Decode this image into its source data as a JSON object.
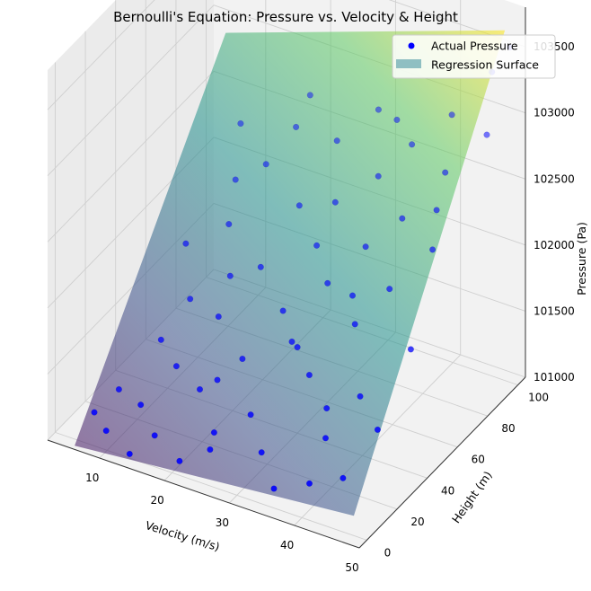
{
  "chart_data": {
    "type": "scatter3d",
    "title": "Bernoulli's Equation: Pressure vs. Velocity & Height",
    "xlabel": "Velocity (m/s)",
    "ylabel": "Height (m)",
    "zlabel": "Pressure (Pa)",
    "xlim": [
      2,
      50
    ],
    "ylim": [
      -5,
      105
    ],
    "zlim": [
      101000,
      103800
    ],
    "x_ticks": [
      "10",
      "20",
      "30",
      "40",
      "50"
    ],
    "y_ticks": [
      "0",
      "20",
      "40",
      "60",
      "80",
      "100"
    ],
    "z_ticks": [
      "101000",
      "101500",
      "102000",
      "102500",
      "103000",
      "103500"
    ],
    "legend": {
      "position": "top-right",
      "entries": [
        {
          "label": "Actual Pressure",
          "marker": "circle",
          "color": "#0000ff"
        },
        {
          "label": "Regression Surface",
          "marker": "patch",
          "color": "#8fbfc2"
        }
      ]
    },
    "surface": {
      "colormap": "viridis",
      "corners": [
        {
          "x": 5,
          "y": 0,
          "z": 100950
        },
        {
          "x": 48,
          "y": 0,
          "z": 101150
        },
        {
          "x": 5,
          "y": 100,
          "z": 102900
        },
        {
          "x": 48,
          "y": 100,
          "z": 103650
        }
      ]
    },
    "points": [
      {
        "x": 5,
        "y": 13,
        "z": 101050
      },
      {
        "x": 6,
        "y": 25,
        "z": 101100
      },
      {
        "x": 8,
        "y": 8,
        "z": 101020
      },
      {
        "x": 9,
        "y": 40,
        "z": 101350
      },
      {
        "x": 10,
        "y": 55,
        "z": 101500
      },
      {
        "x": 11,
        "y": 18,
        "z": 101150
      },
      {
        "x": 12,
        "y": 72,
        "z": 101900
      },
      {
        "x": 13,
        "y": 33,
        "z": 101300
      },
      {
        "x": 14,
        "y": 88,
        "z": 102200
      },
      {
        "x": 15,
        "y": 10,
        "z": 101080
      },
      {
        "x": 16,
        "y": 48,
        "z": 101550
      },
      {
        "x": 17,
        "y": 95,
        "z": 102450
      },
      {
        "x": 18,
        "y": 27,
        "z": 101280
      },
      {
        "x": 19,
        "y": 63,
        "z": 101800
      },
      {
        "x": 20,
        "y": 5,
        "z": 101030
      },
      {
        "x": 21,
        "y": 80,
        "z": 102100
      },
      {
        "x": 22,
        "y": 38,
        "z": 101450
      },
      {
        "x": 23,
        "y": 15,
        "z": 101180
      },
      {
        "x": 24,
        "y": 92,
        "z": 102500
      },
      {
        "x": 25,
        "y": 52,
        "z": 101700
      },
      {
        "x": 26,
        "y": 70,
        "z": 102000
      },
      {
        "x": 27,
        "y": 22,
        "z": 101300
      },
      {
        "x": 28,
        "y": 45,
        "z": 101600
      },
      {
        "x": 29,
        "y": 98,
        "z": 102750
      },
      {
        "x": 30,
        "y": 60,
        "z": 101900
      },
      {
        "x": 31,
        "y": 12,
        "z": 101200
      },
      {
        "x": 32,
        "y": 85,
        "z": 102450
      },
      {
        "x": 33,
        "y": 35,
        "z": 101550
      },
      {
        "x": 34,
        "y": 68,
        "z": 102150
      },
      {
        "x": 35,
        "y": 3,
        "z": 101100
      },
      {
        "x": 36,
        "y": 90,
        "z": 102700
      },
      {
        "x": 37,
        "y": 48,
        "z": 101850
      },
      {
        "x": 38,
        "y": 75,
        "z": 102350
      },
      {
        "x": 39,
        "y": 20,
        "z": 101350
      },
      {
        "x": 40,
        "y": 58,
        "z": 102050
      },
      {
        "x": 41,
        "y": 95,
        "z": 102950
      },
      {
        "x": 42,
        "y": 30,
        "z": 101600
      },
      {
        "x": 43,
        "y": 82,
        "z": 102700
      },
      {
        "x": 44,
        "y": 10,
        "z": 101250
      },
      {
        "x": 45,
        "y": 65,
        "z": 102350
      },
      {
        "x": 46,
        "y": 100,
        "z": 103300
      },
      {
        "x": 47,
        "y": 42,
        "z": 101900
      },
      {
        "x": 48,
        "y": 88,
        "z": 103000
      },
      {
        "x": 49,
        "y": 99,
        "z": 103550
      },
      {
        "x": 7,
        "y": 65,
        "z": 101750
      },
      {
        "x": 10,
        "y": 85,
        "z": 102050
      },
      {
        "x": 13,
        "y": 2,
        "z": 101000
      },
      {
        "x": 18,
        "y": 100,
        "z": 102650
      },
      {
        "x": 24,
        "y": 8,
        "z": 101150
      },
      {
        "x": 30,
        "y": 40,
        "z": 101650
      },
      {
        "x": 35,
        "y": 55,
        "z": 101950
      },
      {
        "x": 40,
        "y": 5,
        "z": 101200
      },
      {
        "x": 44,
        "y": 72,
        "z": 102550
      },
      {
        "x": 20,
        "y": 30,
        "z": 101350
      },
      {
        "x": 27,
        "y": 78,
        "z": 102250
      },
      {
        "x": 33,
        "y": 93,
        "z": 102800
      },
      {
        "x": 38,
        "y": 25,
        "z": 101500
      },
      {
        "x": 15,
        "y": 60,
        "z": 101700
      },
      {
        "x": 47,
        "y": 20,
        "z": 101550
      },
      {
        "x": 8,
        "y": 97,
        "z": 102300
      }
    ]
  }
}
